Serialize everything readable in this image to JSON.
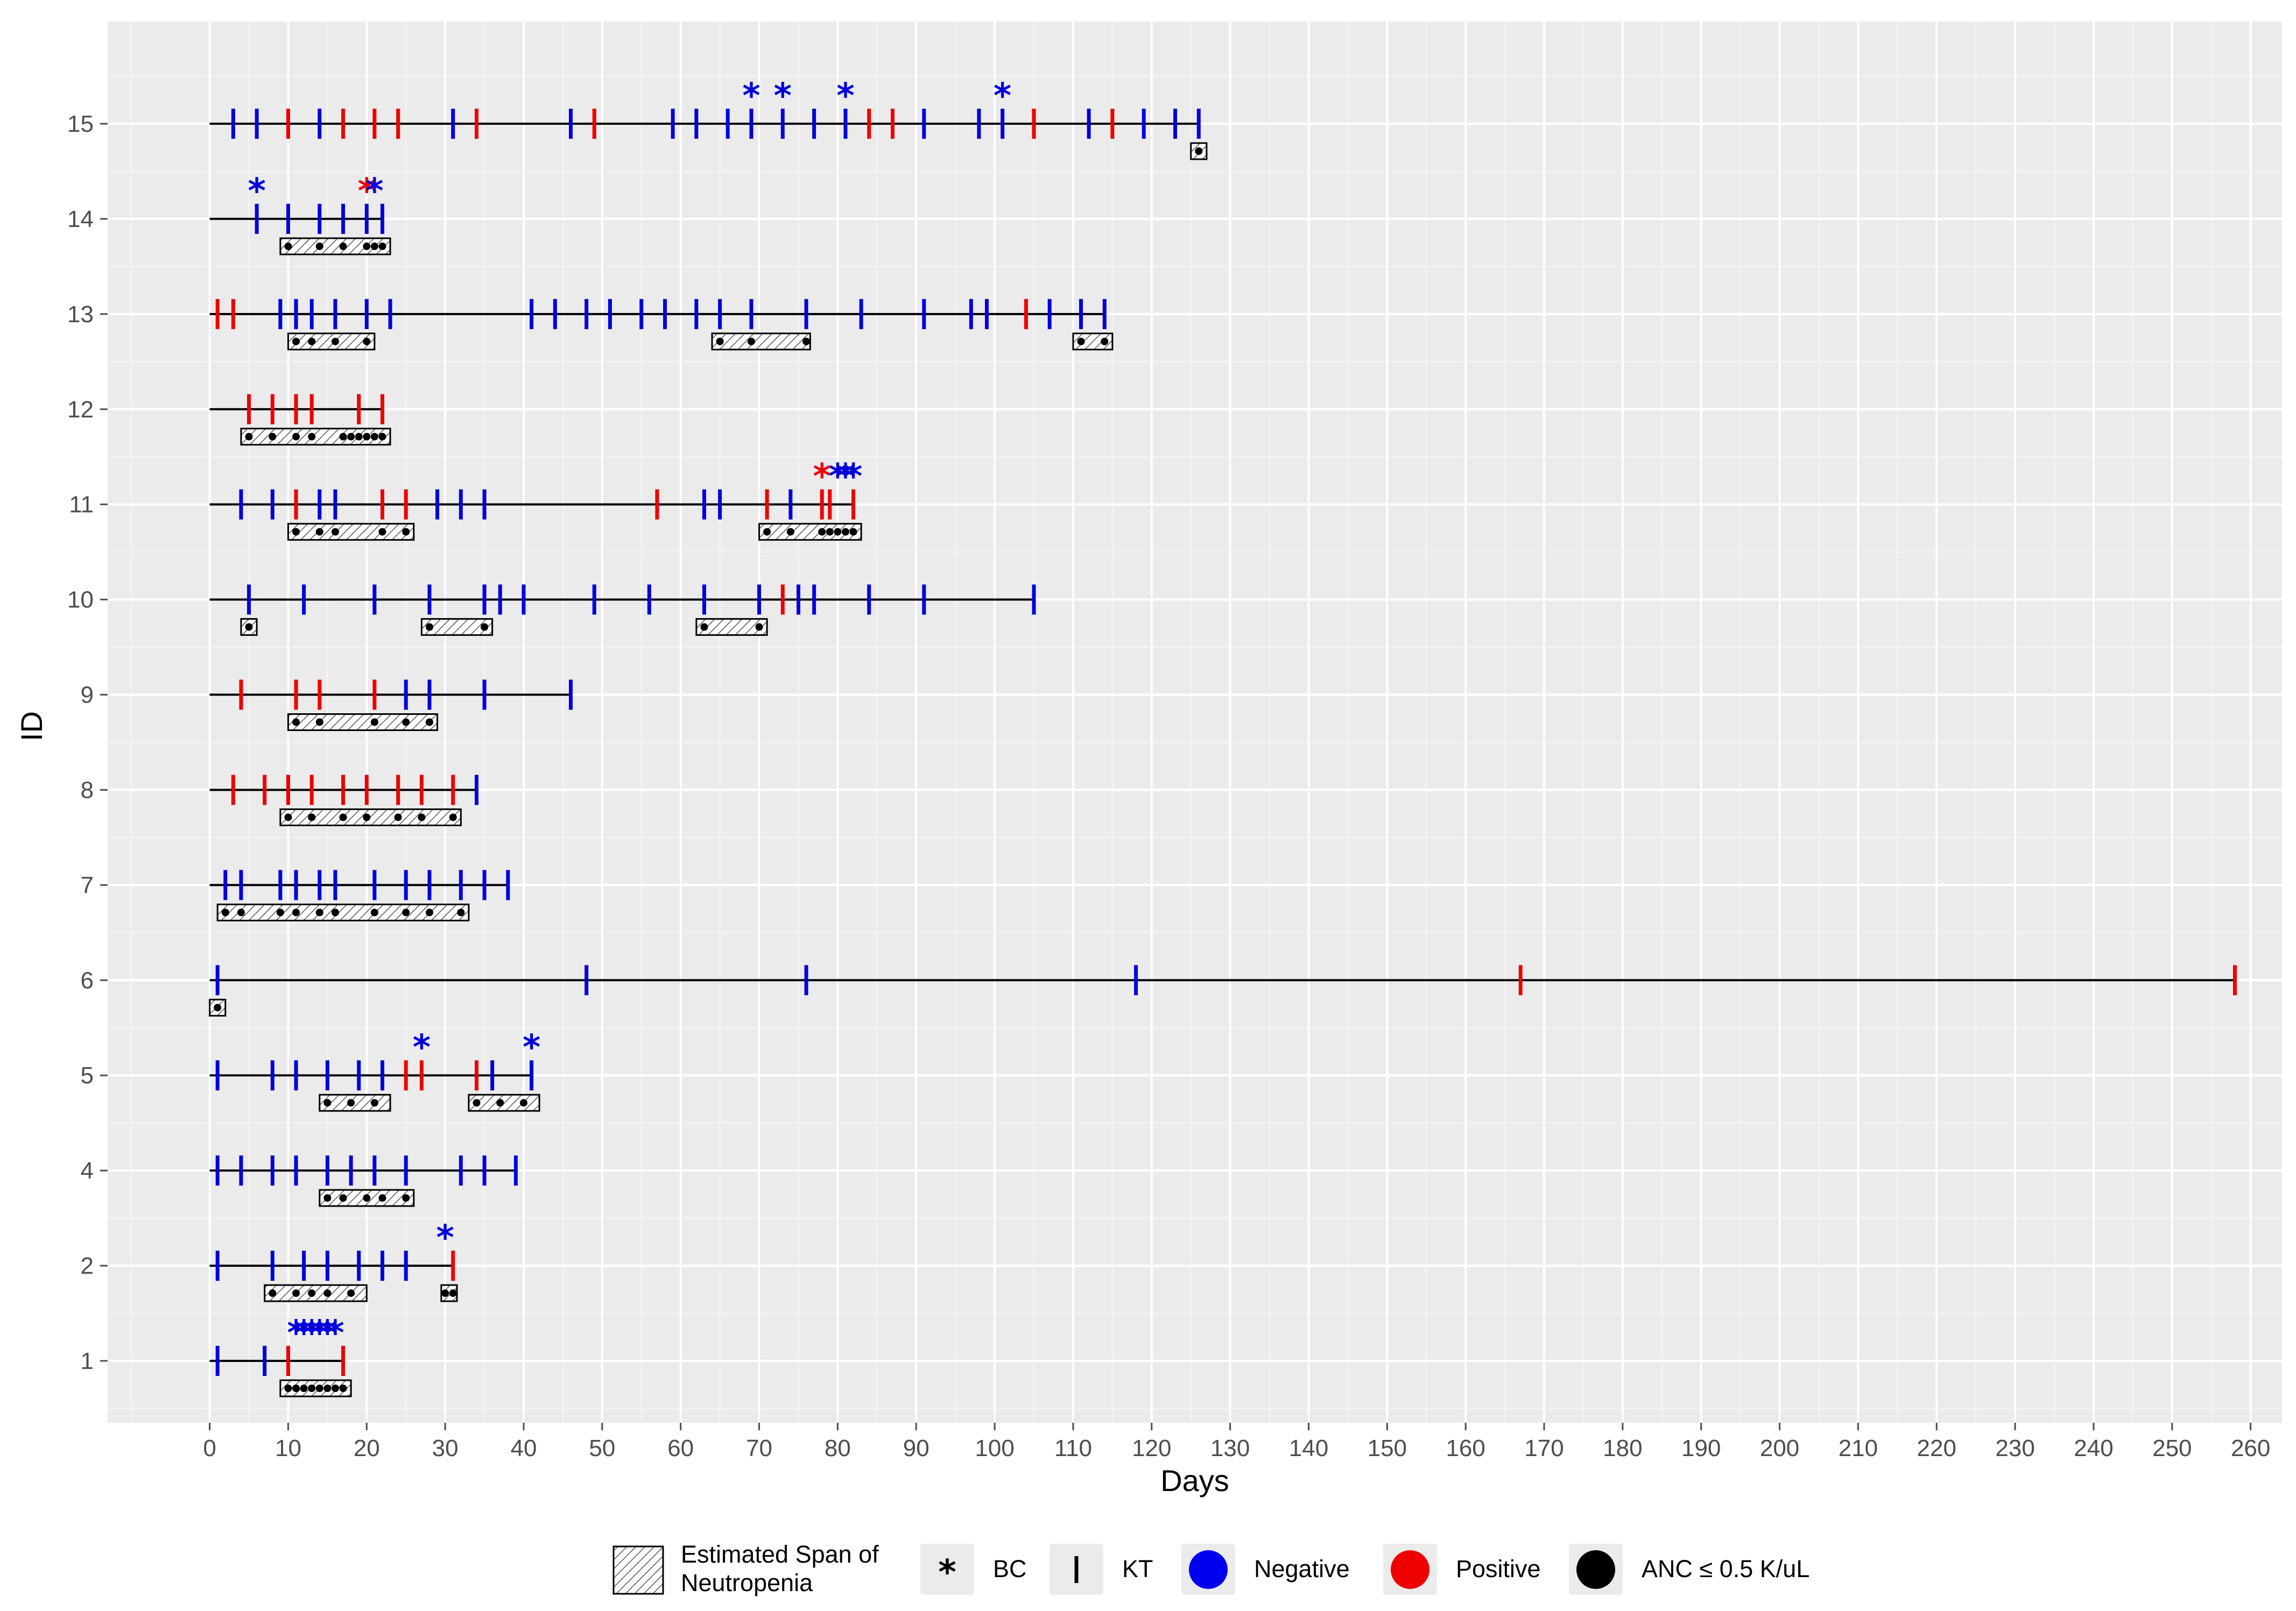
{
  "chart_data": {
    "type": "timeline",
    "xlabel": "Days",
    "ylabel": "ID",
    "xlim": [
      -13,
      264
    ],
    "x_ticks": [
      0,
      10,
      20,
      30,
      40,
      50,
      60,
      70,
      80,
      90,
      100,
      110,
      120,
      130,
      140,
      150,
      160,
      170,
      180,
      190,
      200,
      210,
      220,
      230,
      240,
      250,
      260
    ],
    "y_positions": [
      "1",
      "2",
      "4",
      "5",
      "6",
      "7",
      "8",
      "9",
      "10",
      "11",
      "12",
      "13",
      "14",
      "15"
    ],
    "y_ticks": [
      "1",
      "2",
      "4",
      "5",
      "6",
      "7",
      "8",
      "9",
      "10",
      "11",
      "12",
      "13",
      "14",
      "15"
    ],
    "colors": {
      "negative": "#0000dd",
      "positive": "#ee0000",
      "anc": "#000000"
    },
    "patients": [
      {
        "id": "1",
        "span": [
          0,
          17
        ],
        "kt": [
          [
            1,
            "neg"
          ],
          [
            7,
            "neg"
          ],
          [
            10,
            "pos"
          ],
          [
            17,
            "pos"
          ]
        ],
        "bc": [
          [
            11,
            "neg"
          ],
          [
            12,
            "neg"
          ],
          [
            13,
            "neg"
          ],
          [
            14,
            "neg"
          ],
          [
            15,
            "neg"
          ],
          [
            16,
            "neg"
          ]
        ],
        "neutropenia": [
          [
            9,
            18
          ]
        ],
        "anc": [
          10,
          11,
          12,
          13,
          14,
          15,
          16,
          17
        ]
      },
      {
        "id": "2",
        "span": [
          0,
          31
        ],
        "kt": [
          [
            1,
            "neg"
          ],
          [
            8,
            "neg"
          ],
          [
            12,
            "neg"
          ],
          [
            15,
            "neg"
          ],
          [
            19,
            "neg"
          ],
          [
            22,
            "neg"
          ],
          [
            25,
            "neg"
          ],
          [
            31,
            "pos"
          ]
        ],
        "bc": [
          [
            30,
            "neg"
          ]
        ],
        "neutropenia": [
          [
            7,
            20
          ],
          [
            29.5,
            31.5
          ]
        ],
        "anc": [
          8,
          11,
          13,
          15,
          18,
          30,
          31
        ]
      },
      {
        "id": "4",
        "span": [
          0,
          39
        ],
        "kt": [
          [
            1,
            "neg"
          ],
          [
            4,
            "neg"
          ],
          [
            8,
            "neg"
          ],
          [
            11,
            "neg"
          ],
          [
            15,
            "neg"
          ],
          [
            18,
            "neg"
          ],
          [
            21,
            "neg"
          ],
          [
            25,
            "neg"
          ],
          [
            32,
            "neg"
          ],
          [
            35,
            "neg"
          ],
          [
            39,
            "neg"
          ]
        ],
        "bc": [],
        "neutropenia": [
          [
            14,
            26
          ]
        ],
        "anc": [
          15,
          17,
          20,
          22,
          25
        ]
      },
      {
        "id": "5",
        "span": [
          0,
          41
        ],
        "kt": [
          [
            1,
            "neg"
          ],
          [
            8,
            "neg"
          ],
          [
            11,
            "neg"
          ],
          [
            15,
            "neg"
          ],
          [
            19,
            "neg"
          ],
          [
            22,
            "neg"
          ],
          [
            25,
            "pos"
          ],
          [
            27,
            "pos"
          ],
          [
            34,
            "pos"
          ],
          [
            36,
            "neg"
          ],
          [
            41,
            "neg"
          ]
        ],
        "bc": [
          [
            27,
            "neg"
          ],
          [
            41,
            "neg"
          ]
        ],
        "neutropenia": [
          [
            14,
            23
          ],
          [
            33,
            42
          ]
        ],
        "anc": [
          15,
          18,
          21,
          34,
          37,
          40
        ]
      },
      {
        "id": "6",
        "span": [
          0,
          258
        ],
        "kt": [
          [
            1,
            "neg"
          ],
          [
            48,
            "neg"
          ],
          [
            76,
            "neg"
          ],
          [
            118,
            "neg"
          ],
          [
            167,
            "pos"
          ],
          [
            258,
            "pos"
          ]
        ],
        "bc": [],
        "neutropenia": [
          [
            0,
            2
          ]
        ],
        "anc": [
          1
        ]
      },
      {
        "id": "7",
        "span": [
          0,
          38
        ],
        "kt": [
          [
            2,
            "neg"
          ],
          [
            4,
            "neg"
          ],
          [
            9,
            "neg"
          ],
          [
            11,
            "neg"
          ],
          [
            14,
            "neg"
          ],
          [
            16,
            "neg"
          ],
          [
            21,
            "neg"
          ],
          [
            25,
            "neg"
          ],
          [
            28,
            "neg"
          ],
          [
            32,
            "neg"
          ],
          [
            35,
            "neg"
          ],
          [
            38,
            "neg"
          ]
        ],
        "bc": [],
        "neutropenia": [
          [
            1,
            33
          ]
        ],
        "anc": [
          2,
          4,
          9,
          11,
          14,
          16,
          21,
          25,
          28,
          32
        ]
      },
      {
        "id": "8",
        "span": [
          0,
          34
        ],
        "kt": [
          [
            3,
            "pos"
          ],
          [
            7,
            "pos"
          ],
          [
            10,
            "pos"
          ],
          [
            13,
            "pos"
          ],
          [
            17,
            "pos"
          ],
          [
            20,
            "pos"
          ],
          [
            24,
            "pos"
          ],
          [
            27,
            "pos"
          ],
          [
            31,
            "pos"
          ],
          [
            34,
            "neg"
          ]
        ],
        "bc": [],
        "neutropenia": [
          [
            9,
            32
          ]
        ],
        "anc": [
          10,
          13,
          17,
          20,
          24,
          27,
          31
        ]
      },
      {
        "id": "9",
        "span": [
          0,
          46
        ],
        "kt": [
          [
            4,
            "pos"
          ],
          [
            11,
            "pos"
          ],
          [
            14,
            "pos"
          ],
          [
            21,
            "pos"
          ],
          [
            25,
            "neg"
          ],
          [
            28,
            "neg"
          ],
          [
            35,
            "neg"
          ],
          [
            46,
            "neg"
          ]
        ],
        "bc": [],
        "neutropenia": [
          [
            10,
            29
          ]
        ],
        "anc": [
          11,
          14,
          21,
          25,
          28
        ]
      },
      {
        "id": "10",
        "span": [
          0,
          105
        ],
        "kt": [
          [
            5,
            "neg"
          ],
          [
            12,
            "neg"
          ],
          [
            21,
            "neg"
          ],
          [
            28,
            "neg"
          ],
          [
            35,
            "neg"
          ],
          [
            37,
            "neg"
          ],
          [
            40,
            "neg"
          ],
          [
            49,
            "neg"
          ],
          [
            56,
            "neg"
          ],
          [
            63,
            "neg"
          ],
          [
            70,
            "neg"
          ],
          [
            73,
            "pos"
          ],
          [
            75,
            "neg"
          ],
          [
            77,
            "neg"
          ],
          [
            84,
            "neg"
          ],
          [
            91,
            "neg"
          ],
          [
            105,
            "neg"
          ]
        ],
        "bc": [],
        "neutropenia": [
          [
            4,
            6
          ],
          [
            27,
            36
          ],
          [
            62,
            71
          ]
        ],
        "anc": [
          5,
          28,
          35,
          63,
          70
        ]
      },
      {
        "id": "11",
        "span": [
          0,
          82
        ],
        "kt": [
          [
            4,
            "neg"
          ],
          [
            8,
            "neg"
          ],
          [
            11,
            "pos"
          ],
          [
            14,
            "neg"
          ],
          [
            16,
            "neg"
          ],
          [
            22,
            "pos"
          ],
          [
            25,
            "pos"
          ],
          [
            29,
            "neg"
          ],
          [
            32,
            "neg"
          ],
          [
            35,
            "neg"
          ],
          [
            57,
            "pos"
          ],
          [
            63,
            "neg"
          ],
          [
            65,
            "neg"
          ],
          [
            71,
            "pos"
          ],
          [
            74,
            "neg"
          ],
          [
            78,
            "pos"
          ],
          [
            79,
            "pos"
          ],
          [
            82,
            "pos"
          ]
        ],
        "bc": [
          [
            78,
            "pos"
          ],
          [
            80,
            "neg"
          ],
          [
            81,
            "neg"
          ],
          [
            82,
            "neg"
          ]
        ],
        "neutropenia": [
          [
            10,
            26
          ],
          [
            70,
            83
          ]
        ],
        "anc": [
          11,
          14,
          16,
          22,
          25,
          71,
          74,
          78,
          79,
          80,
          81,
          82
        ]
      },
      {
        "id": "12",
        "span": [
          0,
          22
        ],
        "kt": [
          [
            5,
            "pos"
          ],
          [
            8,
            "pos"
          ],
          [
            11,
            "pos"
          ],
          [
            13,
            "pos"
          ],
          [
            19,
            "pos"
          ],
          [
            22,
            "pos"
          ]
        ],
        "bc": [],
        "neutropenia": [
          [
            4,
            23
          ]
        ],
        "anc": [
          5,
          8,
          11,
          13,
          17,
          18,
          19,
          20,
          21,
          22
        ]
      },
      {
        "id": "13",
        "span": [
          0,
          114
        ],
        "kt": [
          [
            1,
            "pos"
          ],
          [
            3,
            "pos"
          ],
          [
            9,
            "neg"
          ],
          [
            11,
            "neg"
          ],
          [
            13,
            "neg"
          ],
          [
            16,
            "neg"
          ],
          [
            20,
            "neg"
          ],
          [
            23,
            "neg"
          ],
          [
            41,
            "neg"
          ],
          [
            44,
            "neg"
          ],
          [
            48,
            "neg"
          ],
          [
            51,
            "neg"
          ],
          [
            55,
            "neg"
          ],
          [
            58,
            "neg"
          ],
          [
            62,
            "neg"
          ],
          [
            65,
            "neg"
          ],
          [
            69,
            "neg"
          ],
          [
            76,
            "neg"
          ],
          [
            83,
            "neg"
          ],
          [
            91,
            "neg"
          ],
          [
            97,
            "neg"
          ],
          [
            99,
            "neg"
          ],
          [
            104,
            "pos"
          ],
          [
            107,
            "neg"
          ],
          [
            111,
            "neg"
          ],
          [
            114,
            "neg"
          ]
        ],
        "bc": [],
        "neutropenia": [
          [
            10,
            21
          ],
          [
            64,
            76.5
          ],
          [
            110,
            115
          ]
        ],
        "anc": [
          11,
          13,
          16,
          20,
          65,
          69,
          76,
          111,
          114
        ]
      },
      {
        "id": "14",
        "span": [
          0,
          22
        ],
        "kt": [
          [
            6,
            "neg"
          ],
          [
            10,
            "neg"
          ],
          [
            14,
            "neg"
          ],
          [
            17,
            "neg"
          ],
          [
            20,
            "neg"
          ],
          [
            22,
            "neg"
          ]
        ],
        "bc": [
          [
            6,
            "neg"
          ],
          [
            20,
            "pos"
          ],
          [
            21,
            "neg"
          ]
        ],
        "neutropenia": [
          [
            9,
            23
          ]
        ],
        "anc": [
          10,
          14,
          17,
          20,
          21,
          22
        ]
      },
      {
        "id": "15",
        "span": [
          0,
          126
        ],
        "kt": [
          [
            3,
            "neg"
          ],
          [
            6,
            "neg"
          ],
          [
            10,
            "pos"
          ],
          [
            14,
            "neg"
          ],
          [
            17,
            "pos"
          ],
          [
            21,
            "pos"
          ],
          [
            24,
            "pos"
          ],
          [
            31,
            "neg"
          ],
          [
            34,
            "pos"
          ],
          [
            46,
            "neg"
          ],
          [
            49,
            "pos"
          ],
          [
            59,
            "neg"
          ],
          [
            62,
            "neg"
          ],
          [
            66,
            "neg"
          ],
          [
            69,
            "neg"
          ],
          [
            73,
            "neg"
          ],
          [
            77,
            "neg"
          ],
          [
            81,
            "neg"
          ],
          [
            84,
            "pos"
          ],
          [
            87,
            "pos"
          ],
          [
            91,
            "neg"
          ],
          [
            98,
            "neg"
          ],
          [
            101,
            "neg"
          ],
          [
            105,
            "pos"
          ],
          [
            112,
            "neg"
          ],
          [
            115,
            "pos"
          ],
          [
            119,
            "neg"
          ],
          [
            123,
            "neg"
          ],
          [
            126,
            "neg"
          ]
        ],
        "bc": [
          [
            69,
            "neg"
          ],
          [
            73,
            "neg"
          ],
          [
            81,
            "neg"
          ],
          [
            101,
            "neg"
          ]
        ],
        "neutropenia": [
          [
            125,
            127
          ]
        ],
        "anc": [
          126
        ]
      }
    ],
    "legend": {
      "neutropenia_label_line1": "Estimated Span of",
      "neutropenia_label_line2": "Neutropenia",
      "bc_symbol": "*",
      "bc_label": "BC",
      "kt_label": "KT",
      "negative_label": "Negative",
      "positive_label": "Positive",
      "anc_label": "ANC ≤ 0.5 K/uL"
    }
  }
}
